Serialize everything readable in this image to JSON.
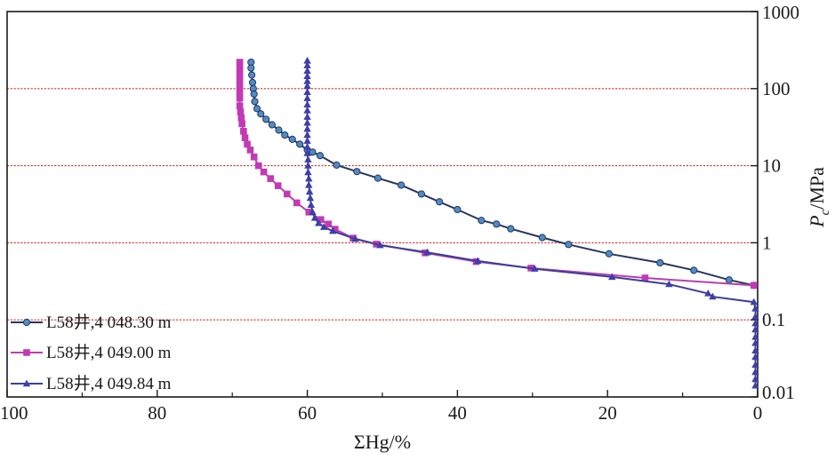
{
  "chart_data": {
    "type": "line",
    "xlabel": "ΣHg/%",
    "ylabel_main": "P",
    "ylabel_sub": "c",
    "ylabel_unit": "/MPa",
    "x_reversed": true,
    "xlim": [
      100,
      0
    ],
    "x_ticks": [
      "100",
      "80",
      "60",
      "40",
      "20",
      "0"
    ],
    "y_scale": "log",
    "ylim": [
      0.01,
      1000
    ],
    "y_ticks": [
      "0.01",
      "0.1",
      "1",
      "10",
      "100",
      "1000"
    ],
    "y_axis_position": "right",
    "grid": "horizontal dashed red at 0.1, 1, 10, 100",
    "grid_color": "#d9302a",
    "legend_position": "bottom-left",
    "series": [
      {
        "name": "L58井,4 048.30 m",
        "color": "#27365e",
        "marker": "circle",
        "marker_fill": "#4e8cc4",
        "points": [
          [
            67.5,
            220
          ],
          [
            67.5,
            185
          ],
          [
            67.4,
            150
          ],
          [
            67.3,
            120
          ],
          [
            67.2,
            100
          ],
          [
            67.1,
            85
          ],
          [
            67.0,
            68
          ],
          [
            66.7,
            55
          ],
          [
            66.2,
            47
          ],
          [
            65.5,
            40
          ],
          [
            64.7,
            34
          ],
          [
            63.8,
            29
          ],
          [
            63.0,
            25
          ],
          [
            62.0,
            22
          ],
          [
            61.0,
            19
          ],
          [
            60.0,
            16
          ],
          [
            59.3,
            15
          ],
          [
            58.3,
            13.5
          ],
          [
            56.1,
            10.2
          ],
          [
            53.4,
            8.4
          ],
          [
            50.6,
            6.9
          ],
          [
            47.5,
            5.6
          ],
          [
            44.8,
            4.3
          ],
          [
            42.4,
            3.4
          ],
          [
            40.0,
            2.7
          ],
          [
            36.8,
            1.95
          ],
          [
            34.8,
            1.75
          ],
          [
            32.9,
            1.52
          ],
          [
            28.7,
            1.17
          ],
          [
            25.2,
            0.95
          ],
          [
            19.8,
            0.72
          ],
          [
            13.0,
            0.55
          ],
          [
            8.5,
            0.44
          ],
          [
            3.8,
            0.33
          ],
          [
            0.5,
            0.28
          ]
        ]
      },
      {
        "name": "L58井,4 049.00 m",
        "color": "#b93fae",
        "marker": "square",
        "marker_fill": "#c23ab4",
        "points": [
          [
            69.0,
            220
          ],
          [
            69.0,
            185
          ],
          [
            69.0,
            155
          ],
          [
            69.0,
            130
          ],
          [
            69.0,
            110
          ],
          [
            69.0,
            90
          ],
          [
            69.0,
            75
          ],
          [
            69.0,
            60
          ],
          [
            68.9,
            50
          ],
          [
            68.8,
            42
          ],
          [
            68.7,
            35
          ],
          [
            68.5,
            28
          ],
          [
            68.3,
            23
          ],
          [
            68.0,
            19
          ],
          [
            67.6,
            16
          ],
          [
            67.1,
            13
          ],
          [
            66.5,
            10
          ],
          [
            65.8,
            8.3
          ],
          [
            64.9,
            6.8
          ],
          [
            63.9,
            5.5
          ],
          [
            62.7,
            4.3
          ],
          [
            61.4,
            3.3
          ],
          [
            59.8,
            2.5
          ],
          [
            58.2,
            2.0
          ],
          [
            57.2,
            1.75
          ],
          [
            56.3,
            1.5
          ],
          [
            53.9,
            1.15
          ],
          [
            50.8,
            0.96
          ],
          [
            44.3,
            0.74
          ],
          [
            37.5,
            0.57
          ],
          [
            30.2,
            0.47
          ],
          [
            15.0,
            0.35
          ],
          [
            0.5,
            0.28
          ]
        ]
      },
      {
        "name": "L58井,4 049.84 m",
        "color": "#3d3f9a",
        "marker": "triangle",
        "marker_fill": "#3e3fa8",
        "points": [
          [
            60.0,
            230
          ],
          [
            60.0,
            200
          ],
          [
            60.0,
            170
          ],
          [
            60.0,
            145
          ],
          [
            60.0,
            125
          ],
          [
            60.0,
            108
          ],
          [
            60.0,
            90
          ],
          [
            60.0,
            75
          ],
          [
            60.0,
            62
          ],
          [
            60.0,
            52
          ],
          [
            60.0,
            43
          ],
          [
            60.0,
            36
          ],
          [
            60.0,
            30
          ],
          [
            60.0,
            25
          ],
          [
            60.0,
            21
          ],
          [
            60.0,
            17.5
          ],
          [
            60.0,
            14.5
          ],
          [
            59.9,
            12
          ],
          [
            59.9,
            10
          ],
          [
            59.9,
            8.2
          ],
          [
            59.8,
            6.8
          ],
          [
            59.8,
            5.6
          ],
          [
            59.7,
            4.6
          ],
          [
            59.6,
            3.8
          ],
          [
            59.5,
            3.1
          ],
          [
            59.3,
            2.5
          ],
          [
            59.0,
            2.1
          ],
          [
            58.5,
            1.8
          ],
          [
            57.8,
            1.6
          ],
          [
            56.6,
            1.42
          ],
          [
            53.6,
            1.12
          ],
          [
            50.3,
            0.93
          ],
          [
            44.0,
            0.75
          ],
          [
            37.3,
            0.58
          ],
          [
            29.7,
            0.46
          ],
          [
            19.4,
            0.36
          ],
          [
            11.8,
            0.29
          ],
          [
            6.6,
            0.22
          ],
          [
            6.0,
            0.2
          ],
          [
            0.5,
            0.17
          ],
          [
            0.3,
            0.14
          ],
          [
            0.3,
            0.11
          ],
          [
            0.3,
            0.09
          ],
          [
            0.3,
            0.075
          ],
          [
            0.3,
            0.06
          ],
          [
            0.3,
            0.05
          ],
          [
            0.3,
            0.04
          ],
          [
            0.3,
            0.033
          ],
          [
            0.3,
            0.026
          ],
          [
            0.3,
            0.021
          ],
          [
            0.3,
            0.017
          ],
          [
            0.3,
            0.014
          ]
        ]
      }
    ]
  }
}
